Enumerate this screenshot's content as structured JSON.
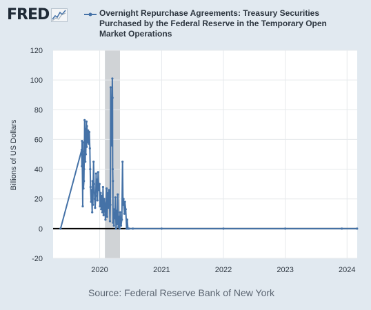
{
  "brand": {
    "logo_text": "FRED",
    "logo_icon": "chart-line-icon"
  },
  "chart_data": {
    "type": "line",
    "title": "Overnight Repurchase Agreements: Treasury Securities Purchased by the Federal Reserve in the Temporary Open Market Operations",
    "xlabel": "",
    "ylabel": "Billions of US Dollars",
    "ylim": [
      -20,
      120
    ],
    "y_ticks": [
      -20,
      0,
      20,
      40,
      60,
      80,
      100,
      120
    ],
    "x_ticks": [
      "2020",
      "2021",
      "2022",
      "2023",
      "2024"
    ],
    "xlim": [
      "2019-04-01",
      "2024-03-01"
    ],
    "shaded_recession": [
      "2020-02-01",
      "2020-04-30"
    ],
    "grid": true,
    "series": [
      {
        "name": "Overnight Repurchase Agreements: Treasury Securities Purchased by the Federal Reserve in the Temporary Open Market Operations",
        "color": "#4572a7",
        "points": [
          [
            "2019-05-15",
            0
          ],
          [
            "2019-09-17",
            53
          ],
          [
            "2019-09-18",
            42
          ],
          [
            "2019-09-19",
            59
          ],
          [
            "2019-09-20",
            49
          ],
          [
            "2019-09-23",
            15
          ],
          [
            "2019-09-24",
            58
          ],
          [
            "2019-09-25",
            35
          ],
          [
            "2019-09-26",
            46
          ],
          [
            "2019-09-27",
            27
          ],
          [
            "2019-09-30",
            32
          ],
          [
            "2019-10-01",
            40
          ],
          [
            "2019-10-03",
            52
          ],
          [
            "2019-10-04",
            73
          ],
          [
            "2019-10-07",
            60
          ],
          [
            "2019-10-08",
            45
          ],
          [
            "2019-10-10",
            67
          ],
          [
            "2019-10-11",
            50
          ],
          [
            "2019-10-15",
            72
          ],
          [
            "2019-10-16",
            55
          ],
          [
            "2019-10-18",
            69
          ],
          [
            "2019-10-21",
            62
          ],
          [
            "2019-10-23",
            58
          ],
          [
            "2019-10-25",
            66
          ],
          [
            "2019-10-28",
            60
          ],
          [
            "2019-10-30",
            57
          ],
          [
            "2019-11-01",
            65
          ],
          [
            "2019-11-04",
            54
          ],
          [
            "2019-11-06",
            40
          ],
          [
            "2019-11-08",
            28
          ],
          [
            "2019-11-12",
            18
          ],
          [
            "2019-11-14",
            26
          ],
          [
            "2019-11-18",
            11
          ],
          [
            "2019-11-20",
            32
          ],
          [
            "2019-11-22",
            16
          ],
          [
            "2019-11-26",
            45
          ],
          [
            "2019-11-29",
            30
          ],
          [
            "2019-12-03",
            20
          ],
          [
            "2019-12-05",
            14
          ],
          [
            "2019-12-09",
            22
          ],
          [
            "2019-12-11",
            37
          ],
          [
            "2019-12-13",
            25
          ],
          [
            "2019-12-17",
            33
          ],
          [
            "2019-12-19",
            19
          ],
          [
            "2019-12-23",
            38
          ],
          [
            "2019-12-27",
            26
          ],
          [
            "2019-12-31",
            30
          ],
          [
            "2020-01-03",
            15
          ],
          [
            "2020-01-07",
            24
          ],
          [
            "2020-01-10",
            13
          ],
          [
            "2020-01-14",
            22
          ],
          [
            "2020-01-17",
            11
          ],
          [
            "2020-01-21",
            28
          ],
          [
            "2020-01-24",
            9
          ],
          [
            "2020-01-28",
            20
          ],
          [
            "2020-01-31",
            17
          ],
          [
            "2020-02-04",
            6
          ],
          [
            "2020-02-07",
            12
          ],
          [
            "2020-02-11",
            27
          ],
          [
            "2020-02-14",
            8
          ],
          [
            "2020-02-18",
            24
          ],
          [
            "2020-02-21",
            14
          ],
          [
            "2020-02-25",
            26
          ],
          [
            "2020-02-28",
            18
          ],
          [
            "2020-03-02",
            5
          ],
          [
            "2020-03-04",
            16
          ],
          [
            "2020-03-06",
            95
          ],
          [
            "2020-03-09",
            70
          ],
          [
            "2020-03-10",
            81
          ],
          [
            "2020-03-11",
            66
          ],
          [
            "2020-03-12",
            78
          ],
          [
            "2020-03-13",
            56
          ],
          [
            "2020-03-16",
            101
          ],
          [
            "2020-03-17",
            88
          ],
          [
            "2020-03-18",
            40
          ],
          [
            "2020-03-19",
            32
          ],
          [
            "2020-03-20",
            4
          ],
          [
            "2020-03-23",
            13
          ],
          [
            "2020-03-25",
            2
          ],
          [
            "2020-03-27",
            10
          ],
          [
            "2020-03-31",
            7
          ],
          [
            "2020-04-03",
            21
          ],
          [
            "2020-04-07",
            0
          ],
          [
            "2020-04-10",
            12
          ],
          [
            "2020-04-14",
            3
          ],
          [
            "2020-04-17",
            23
          ],
          [
            "2020-04-21",
            1
          ],
          [
            "2020-04-24",
            8
          ],
          [
            "2020-04-28",
            0
          ],
          [
            "2020-05-01",
            11
          ],
          [
            "2020-05-06",
            2
          ],
          [
            "2020-05-11",
            6
          ],
          [
            "2020-05-15",
            45
          ],
          [
            "2020-05-18",
            16
          ],
          [
            "2020-05-21",
            20
          ],
          [
            "2020-05-26",
            10
          ],
          [
            "2020-05-29",
            18
          ],
          [
            "2020-06-03",
            13
          ],
          [
            "2020-06-08",
            0
          ],
          [
            "2020-06-12",
            6
          ],
          [
            "2020-06-16",
            0
          ],
          [
            "2020-06-22",
            0
          ],
          [
            "2020-07-15",
            0
          ],
          [
            "2021-01-01",
            0
          ],
          [
            "2022-01-01",
            0
          ],
          [
            "2023-01-01",
            0
          ],
          [
            "2023-12-01",
            0
          ],
          [
            "2024-02-29",
            0
          ]
        ]
      }
    ]
  },
  "source": "Source: Federal Reserve Bank of New York"
}
